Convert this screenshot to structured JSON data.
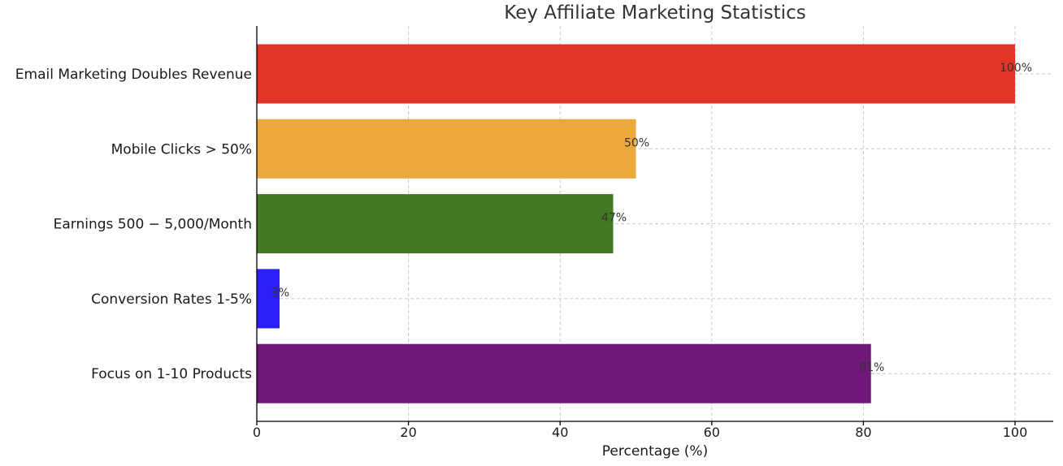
{
  "chart_data": {
    "type": "bar",
    "orientation": "horizontal",
    "title": "Key Affiliate Marketing Statistics",
    "xlabel": "Percentage (%)",
    "ylabel": "",
    "xlim": [
      0,
      105
    ],
    "xticks": [
      0,
      20,
      40,
      60,
      80,
      100
    ],
    "grid": true,
    "categories": [
      "Email Marketing Doubles Revenue",
      "Mobile Clicks > 50%",
      "Earnings 500 − 5,000/Month",
      "Conversion Rates 1-5%",
      "Focus on 1-10 Products"
    ],
    "values": [
      100,
      50,
      47,
      3,
      81
    ],
    "value_labels": [
      "100%",
      "50%",
      "47%",
      "3%",
      "81%"
    ],
    "colors": [
      "#e03524",
      "#eba83b",
      "#417a22",
      "#2b1ff7",
      "#6e1878"
    ]
  }
}
